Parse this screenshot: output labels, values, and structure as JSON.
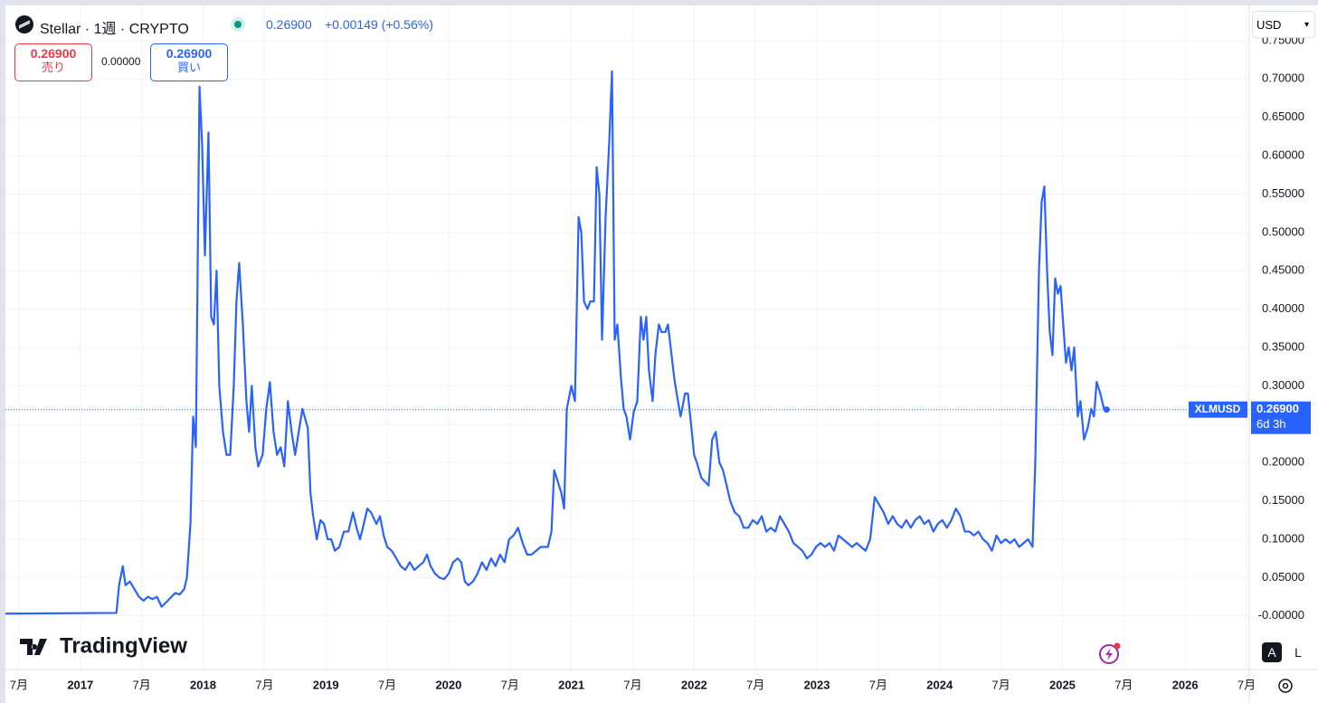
{
  "header": {
    "symbol": "Stellar · 1週 · CRYPTO",
    "price": "0.26900",
    "change": "+0.00149 (+0.56%)",
    "sell_price": "0.26900",
    "sell_label": "売り",
    "spread": "0.00000",
    "buy_price": "0.26900",
    "buy_label": "買い",
    "currency": "USD"
  },
  "branding": {
    "logo": "TradingView"
  },
  "toolbar": {
    "auto": "A",
    "log": "L"
  },
  "chart_data": {
    "type": "line",
    "x": [
      2016.39,
      2017.294,
      2017.316,
      2017.346,
      2017.368,
      2017.404,
      2017.441,
      2017.478,
      2017.515,
      2017.551,
      2017.588,
      2017.625,
      2017.662,
      2017.713,
      2017.772,
      2017.809,
      2017.846,
      2017.868,
      2017.897,
      2017.919,
      2017.941,
      2017.971,
      2017.993,
      2018.015,
      2018.044,
      2018.066,
      2018.088,
      2018.11,
      2018.132,
      2018.162,
      2018.191,
      2018.221,
      2018.25,
      2018.272,
      2018.294,
      2018.324,
      2018.353,
      2018.375,
      2018.397,
      2018.426,
      2018.449,
      2018.485,
      2018.515,
      2018.544,
      2018.574,
      2018.603,
      2018.632,
      2018.662,
      2018.691,
      2018.721,
      2018.75,
      2018.779,
      2018.809,
      2018.853,
      2018.875,
      2018.897,
      2018.926,
      2018.956,
      2018.985,
      2019.015,
      2019.044,
      2019.074,
      2019.11,
      2019.147,
      2019.184,
      2019.221,
      2019.25,
      2019.279,
      2019.309,
      2019.338,
      2019.368,
      2019.412,
      2019.441,
      2019.471,
      2019.5,
      2019.537,
      2019.574,
      2019.61,
      2019.647,
      2019.684,
      2019.721,
      2019.757,
      2019.794,
      2019.824,
      2019.853,
      2019.89,
      2019.926,
      2019.963,
      2020.0,
      2020.037,
      2020.074,
      2020.103,
      2020.132,
      2020.162,
      2020.199,
      2020.235,
      2020.272,
      2020.309,
      2020.346,
      2020.382,
      2020.419,
      2020.456,
      2020.493,
      2020.529,
      2020.566,
      2020.603,
      2020.64,
      2020.676,
      2020.713,
      2020.75,
      2020.809,
      2020.838,
      2020.86,
      2020.89,
      2020.919,
      2020.941,
      2020.963,
      2021.0,
      2021.029,
      2021.059,
      2021.081,
      2021.103,
      2021.132,
      2021.154,
      2021.184,
      2021.206,
      2021.228,
      2021.25,
      2021.279,
      2021.309,
      2021.331,
      2021.353,
      2021.375,
      2021.404,
      2021.426,
      2021.449,
      2021.478,
      2021.507,
      2021.537,
      2021.566,
      2021.588,
      2021.61,
      2021.632,
      2021.662,
      2021.684,
      2021.713,
      2021.735,
      2021.765,
      2021.787,
      2021.809,
      2021.838,
      2021.868,
      2021.89,
      2021.926,
      2021.949,
      2021.978,
      2022.0,
      2022.022,
      2022.059,
      2022.088,
      2022.118,
      2022.147,
      2022.176,
      2022.206,
      2022.235,
      2022.265,
      2022.294,
      2022.331,
      2022.368,
      2022.404,
      2022.441,
      2022.478,
      2022.515,
      2022.551,
      2022.588,
      2022.625,
      2022.662,
      2022.699,
      2022.735,
      2022.772,
      2022.809,
      2022.846,
      2022.882,
      2022.919,
      2022.956,
      2022.993,
      2023.029,
      2023.066,
      2023.103,
      2023.14,
      2023.176,
      2023.213,
      2023.25,
      2023.287,
      2023.324,
      2023.36,
      2023.397,
      2023.434,
      2023.471,
      2023.507,
      2023.544,
      2023.581,
      2023.618,
      2023.654,
      2023.691,
      2023.728,
      2023.765,
      2023.801,
      2023.838,
      2023.875,
      2023.912,
      2023.949,
      2023.985,
      2024.022,
      2024.059,
      2024.096,
      2024.132,
      2024.169,
      2024.206,
      2024.243,
      2024.279,
      2024.316,
      2024.353,
      2024.39,
      2024.426,
      2024.463,
      2024.5,
      2024.537,
      2024.574,
      2024.61,
      2024.647,
      2024.684,
      2024.721,
      2024.757,
      2024.779,
      2024.809,
      2024.831,
      2024.853,
      2024.875,
      2024.897,
      2024.919,
      2024.941,
      2024.963,
      2024.985,
      2025.007,
      2025.029,
      2025.051,
      2025.074,
      2025.096,
      2025.125,
      2025.147,
      2025.176,
      2025.206,
      2025.235,
      2025.257,
      2025.279,
      2025.309,
      2025.338,
      2025.36
    ],
    "series": [
      {
        "name": "XLMUSD",
        "color": "#2962ff",
        "values": [
          0.003,
          0.004,
          0.04,
          0.065,
          0.04,
          0.045,
          0.035,
          0.025,
          0.02,
          0.025,
          0.022,
          0.025,
          0.012,
          0.02,
          0.03,
          0.028,
          0.035,
          0.05,
          0.12,
          0.26,
          0.22,
          0.69,
          0.61,
          0.47,
          0.63,
          0.39,
          0.38,
          0.45,
          0.3,
          0.24,
          0.21,
          0.21,
          0.3,
          0.41,
          0.46,
          0.38,
          0.28,
          0.24,
          0.3,
          0.22,
          0.195,
          0.21,
          0.27,
          0.305,
          0.24,
          0.21,
          0.22,
          0.195,
          0.28,
          0.24,
          0.21,
          0.24,
          0.27,
          0.245,
          0.16,
          0.13,
          0.1,
          0.125,
          0.12,
          0.1,
          0.1,
          0.085,
          0.09,
          0.11,
          0.11,
          0.135,
          0.115,
          0.1,
          0.12,
          0.14,
          0.135,
          0.12,
          0.13,
          0.105,
          0.09,
          0.085,
          0.075,
          0.065,
          0.06,
          0.07,
          0.06,
          0.065,
          0.07,
          0.08,
          0.065,
          0.055,
          0.05,
          0.048,
          0.055,
          0.07,
          0.075,
          0.07,
          0.045,
          0.04,
          0.045,
          0.055,
          0.07,
          0.06,
          0.075,
          0.065,
          0.08,
          0.07,
          0.1,
          0.105,
          0.115,
          0.095,
          0.08,
          0.08,
          0.085,
          0.09,
          0.09,
          0.11,
          0.19,
          0.175,
          0.16,
          0.14,
          0.27,
          0.3,
          0.28,
          0.52,
          0.5,
          0.41,
          0.4,
          0.41,
          0.41,
          0.585,
          0.55,
          0.36,
          0.52,
          0.62,
          0.71,
          0.36,
          0.38,
          0.31,
          0.27,
          0.26,
          0.23,
          0.265,
          0.28,
          0.39,
          0.36,
          0.39,
          0.32,
          0.28,
          0.34,
          0.38,
          0.37,
          0.37,
          0.38,
          0.35,
          0.31,
          0.28,
          0.26,
          0.29,
          0.29,
          0.245,
          0.21,
          0.2,
          0.18,
          0.175,
          0.17,
          0.23,
          0.24,
          0.2,
          0.19,
          0.17,
          0.15,
          0.135,
          0.13,
          0.115,
          0.115,
          0.125,
          0.12,
          0.13,
          0.11,
          0.115,
          0.11,
          0.13,
          0.12,
          0.11,
          0.095,
          0.09,
          0.085,
          0.075,
          0.08,
          0.09,
          0.095,
          0.09,
          0.095,
          0.085,
          0.105,
          0.1,
          0.095,
          0.09,
          0.095,
          0.09,
          0.085,
          0.1,
          0.155,
          0.145,
          0.135,
          0.12,
          0.13,
          0.12,
          0.115,
          0.125,
          0.115,
          0.125,
          0.13,
          0.12,
          0.125,
          0.11,
          0.12,
          0.125,
          0.115,
          0.125,
          0.14,
          0.13,
          0.11,
          0.11,
          0.105,
          0.11,
          0.1,
          0.095,
          0.085,
          0.105,
          0.095,
          0.1,
          0.095,
          0.1,
          0.09,
          0.095,
          0.1,
          0.09,
          0.2,
          0.45,
          0.54,
          0.56,
          0.45,
          0.37,
          0.34,
          0.44,
          0.42,
          0.43,
          0.38,
          0.33,
          0.35,
          0.32,
          0.35,
          0.26,
          0.28,
          0.23,
          0.245,
          0.27,
          0.26,
          0.305,
          0.29,
          0.27,
          0.269
        ]
      }
    ],
    "last_value": 0.269,
    "last_value_label": "0.26900",
    "countdown": "6d 3h",
    "xlim": [
      2016.39,
      2026.522
    ],
    "xticks": [
      {
        "value": 2016.5,
        "label": "7月"
      },
      2017,
      {
        "value": 2017.5,
        "label": "7月"
      },
      2018,
      {
        "value": 2018.5,
        "label": "7月"
      },
      2019,
      {
        "value": 2019.5,
        "label": "7月"
      },
      2020,
      {
        "value": 2020.5,
        "label": "7月"
      },
      2021,
      {
        "value": 2021.5,
        "label": "7月"
      },
      2022,
      {
        "value": 2022.5,
        "label": "7月"
      },
      2023,
      {
        "value": 2023.5,
        "label": "7月"
      },
      2024,
      {
        "value": 2024.5,
        "label": "7月"
      },
      2025,
      {
        "value": 2025.5,
        "label": "7月"
      },
      2026,
      {
        "value": 2026.5,
        "label": "7月"
      }
    ],
    "ylim": [
      -0.0698,
      0.7958
    ],
    "yticks": [
      {
        "value": 0,
        "label": "-0.00000"
      },
      {
        "value": 0.05,
        "label": "0.05000"
      },
      {
        "value": 0.1,
        "label": "0.10000"
      },
      {
        "value": 0.15,
        "label": "0.15000"
      },
      {
        "value": 0.2,
        "label": "0.20000"
      },
      {
        "value": 0.25,
        "label": "0.25000"
      },
      {
        "value": 0.3,
        "label": "0.30000"
      },
      {
        "value": 0.35,
        "label": "0.35000"
      },
      {
        "value": 0.4,
        "label": "0.40000"
      },
      {
        "value": 0.45,
        "label": "0.45000"
      },
      {
        "value": 0.5,
        "label": "0.50000"
      },
      {
        "value": 0.55,
        "label": "0.55000"
      },
      {
        "value": 0.6,
        "label": "0.60000"
      },
      {
        "value": 0.65,
        "label": "0.65000"
      },
      {
        "value": 0.7,
        "label": "0.70000"
      },
      {
        "value": 0.75,
        "label": "0.75000"
      }
    ],
    "grid": true
  }
}
